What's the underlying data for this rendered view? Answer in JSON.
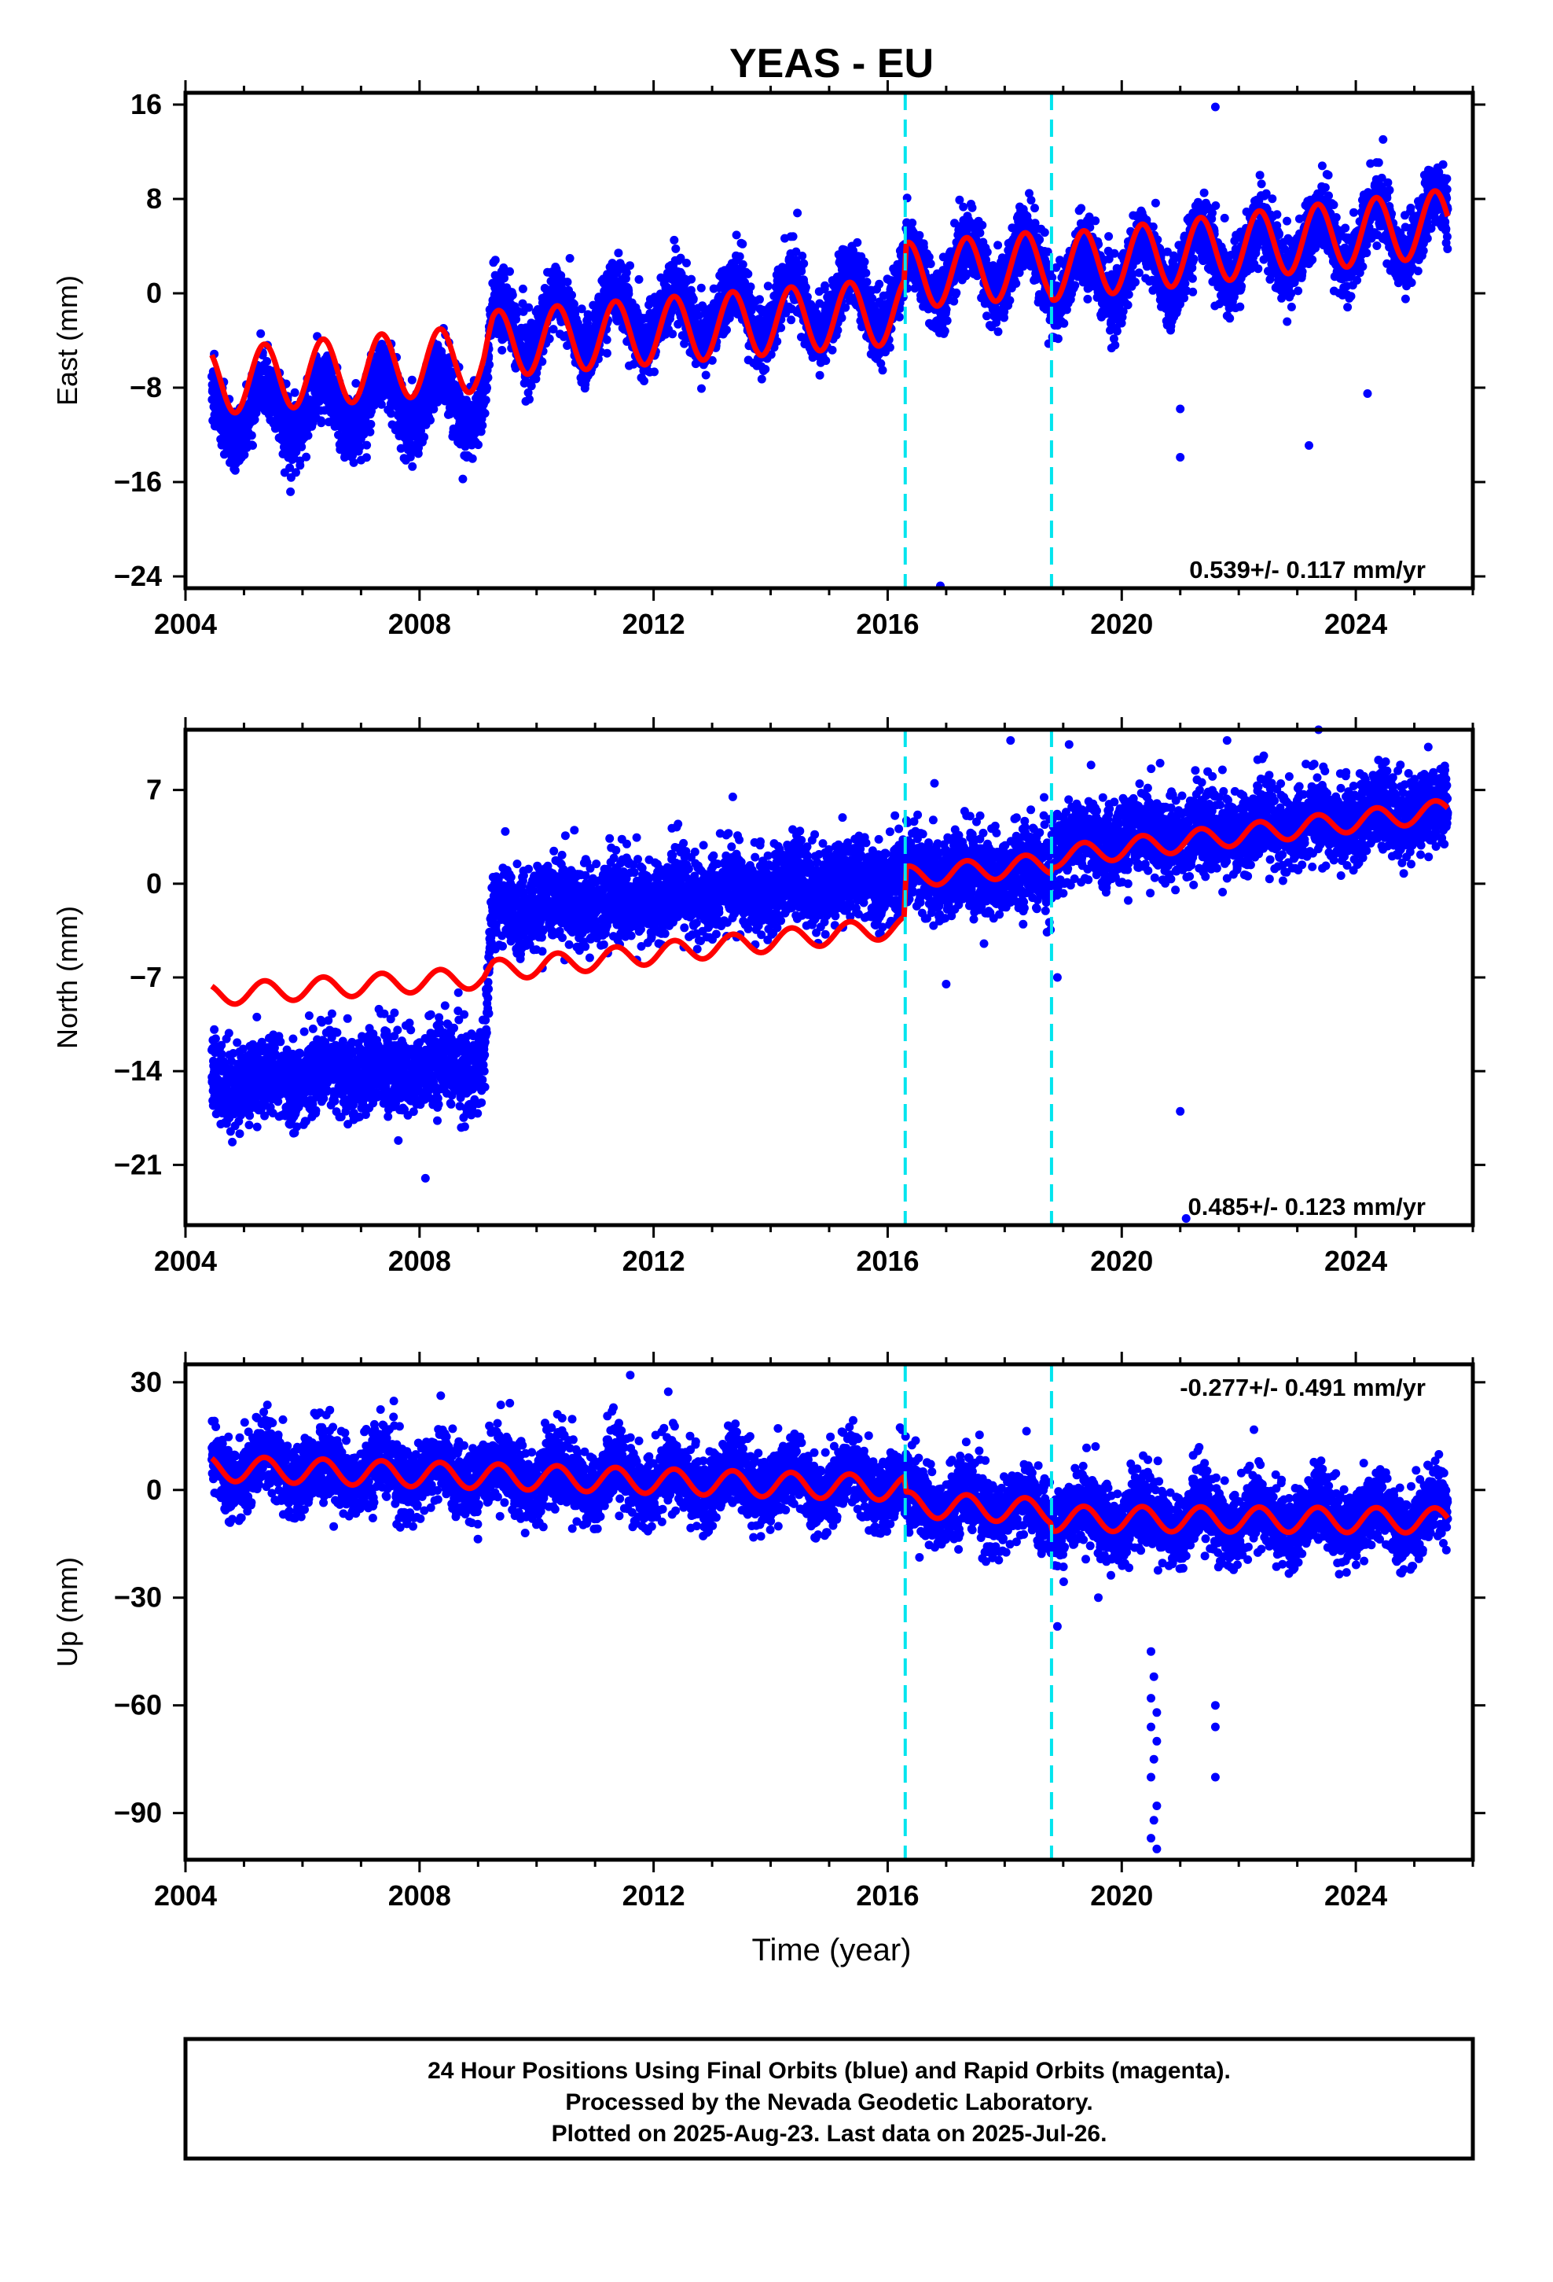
{
  "title": "YEAS - EU",
  "xlabel": "Time (year)",
  "footer": {
    "line1": "24 Hour Positions Using Final Orbits (blue) and Rapid Orbits (magenta).",
    "line2": "Processed by the Nevada Geodetic Laboratory.",
    "line3": "Plotted on 2025-Aug-23. Last data on 2025-Jul-26."
  },
  "colors": {
    "final_orbits": "#0000ff",
    "model": "#ff0000",
    "event_lines": "#00e5ee",
    "frame": "#000000"
  },
  "chart_data": [
    {
      "type": "scatter",
      "panel": "east",
      "ylabel": "East (mm)",
      "xlim": [
        2004.0,
        2026.0
      ],
      "ylim": [
        -25.0,
        17.0
      ],
      "xticks": [
        2004,
        2008,
        2012,
        2016,
        2020,
        2024
      ],
      "yticks": [
        16,
        8,
        0,
        -8,
        -16,
        -24
      ],
      "ytick_labels": [
        "16",
        "8",
        "0",
        "−8",
        "−16",
        "−24"
      ],
      "rate_label": "0.539+/- 0.117 mm/yr",
      "rate_position": "bottom-right",
      "events": [
        2016.3,
        2018.8
      ],
      "data_start": 2004.45,
      "data_end": 2025.57,
      "series": [
        {
          "role": "observations",
          "color": "#0000ff",
          "trend_knots": [
            [
              2004.45,
              -10.0
            ],
            [
              2009.1,
              -9.0
            ],
            [
              2009.25,
              -3.0
            ],
            [
              2016.28,
              -0.5
            ],
            [
              2016.32,
              1.5
            ],
            [
              2018.78,
              2.5
            ],
            [
              2018.82,
              1.0
            ],
            [
              2025.57,
              6.0
            ]
          ],
          "seasonal_amplitude_mm": 2.5,
          "scatter_sigma_mm": 1.4,
          "outliers": [
            [
              2016.9,
              -24.8
            ],
            [
              2021.6,
              15.8
            ],
            [
              2021.0,
              -13.9
            ],
            [
              2021.0,
              -9.8
            ],
            [
              2024.2,
              -8.5
            ],
            [
              2023.2,
              -12.9
            ]
          ]
        },
        {
          "role": "model",
          "color": "#ff0000",
          "trend_knots": [
            [
              2004.45,
              -7.5
            ],
            [
              2009.1,
              -5.5
            ],
            [
              2009.25,
              -4.3
            ],
            [
              2016.28,
              -1.5
            ],
            [
              2016.32,
              1.5
            ],
            [
              2018.78,
              2.5
            ],
            [
              2018.82,
              2.2
            ],
            [
              2025.57,
              6.0
            ]
          ],
          "seasonal_amplitude_mm": 2.8
        }
      ]
    },
    {
      "type": "scatter",
      "panel": "north",
      "ylabel": "North (mm)",
      "xlim": [
        2004.0,
        2026.0
      ],
      "ylim": [
        -25.5,
        11.5
      ],
      "xticks": [
        2004,
        2008,
        2012,
        2016,
        2020,
        2024
      ],
      "yticks": [
        7,
        0,
        -7,
        -14,
        -21
      ],
      "ytick_labels": [
        "7",
        "0",
        "−7",
        "−14",
        "−21"
      ],
      "rate_label": "0.485+/- 0.123 mm/yr",
      "rate_position": "bottom-right",
      "events": [
        2016.3,
        2018.8
      ],
      "data_start": 2004.45,
      "data_end": 2025.57,
      "series": [
        {
          "role": "observations",
          "color": "#0000ff",
          "trend_knots": [
            [
              2004.45,
              -15.0
            ],
            [
              2009.1,
              -13.5
            ],
            [
              2009.25,
              -2.0
            ],
            [
              2016.28,
              0.5
            ],
            [
              2016.32,
              0.5
            ],
            [
              2018.78,
              1.0
            ],
            [
              2018.82,
              2.8
            ],
            [
              2025.57,
              5.5
            ]
          ],
          "seasonal_amplitude_mm": 0.6,
          "scatter_sigma_mm": 1.5,
          "outliers": [
            [
              2008.1,
              -22.0
            ],
            [
              2021.0,
              -17.0
            ],
            [
              2021.1,
              -25.0
            ],
            [
              2018.1,
              10.7
            ],
            [
              2019.1,
              10.4
            ],
            [
              2021.8,
              10.7
            ],
            [
              2017.0,
              -7.5
            ],
            [
              2018.9,
              -7.0
            ],
            [
              2016.8,
              7.5
            ]
          ]
        },
        {
          "role": "model",
          "color": "#ff0000",
          "trend_knots": [
            [
              2004.45,
              -8.3
            ],
            [
              2009.1,
              -7.0
            ],
            [
              2009.25,
              -6.5
            ],
            [
              2016.28,
              -3.2
            ],
            [
              2016.32,
              0.5
            ],
            [
              2018.78,
              1.5
            ],
            [
              2018.82,
              2.0
            ],
            [
              2025.57,
              5.5
            ]
          ],
          "seasonal_amplitude_mm": 0.8
        }
      ]
    },
    {
      "type": "scatter",
      "panel": "up",
      "ylabel": "Up (mm)",
      "xlim": [
        2004.0,
        2026.0
      ],
      "ylim": [
        -103.0,
        35.0
      ],
      "xticks": [
        2004,
        2008,
        2012,
        2016,
        2020,
        2024
      ],
      "yticks": [
        30,
        0,
        -30,
        -60,
        -90
      ],
      "ytick_labels": [
        "30",
        "0",
        "−30",
        "−60",
        "−90"
      ],
      "rate_label": "-0.277+/- 0.491 mm/yr",
      "rate_position": "top-right",
      "events": [
        2016.3,
        2018.8
      ],
      "data_start": 2004.45,
      "data_end": 2025.57,
      "series": [
        {
          "role": "observations",
          "color": "#0000ff",
          "trend_knots": [
            [
              2004.45,
              6.0
            ],
            [
              2016.28,
              1.0
            ],
            [
              2016.32,
              -3.0
            ],
            [
              2018.78,
              -6.0
            ],
            [
              2018.82,
              -8.0
            ],
            [
              2025.57,
              -8.0
            ]
          ],
          "seasonal_amplitude_mm": 4.0,
          "scatter_sigma_mm": 5.0,
          "outliers": [
            [
              2011.6,
              32.0
            ],
            [
              2020.5,
              -45.0
            ],
            [
              2020.55,
              -52.0
            ],
            [
              2020.5,
              -58.0
            ],
            [
              2020.6,
              -62.0
            ],
            [
              2020.5,
              -66.0
            ],
            [
              2020.6,
              -70.0
            ],
            [
              2020.55,
              -75.0
            ],
            [
              2020.5,
              -80.0
            ],
            [
              2020.6,
              -88.0
            ],
            [
              2020.55,
              -92.0
            ],
            [
              2020.5,
              -97.0
            ],
            [
              2020.6,
              -100.0
            ],
            [
              2021.6,
              -60.0
            ],
            [
              2021.6,
              -66.0
            ],
            [
              2021.6,
              -80.0
            ],
            [
              2018.9,
              -38.0
            ],
            [
              2019.6,
              -30.0
            ]
          ]
        },
        {
          "role": "model",
          "color": "#ff0000",
          "trend_knots": [
            [
              2004.45,
              6.0
            ],
            [
              2016.28,
              0.5
            ],
            [
              2016.32,
              -4.0
            ],
            [
              2018.78,
              -6.0
            ],
            [
              2018.82,
              -8.0
            ],
            [
              2025.57,
              -8.5
            ]
          ],
          "seasonal_amplitude_mm": 3.5
        }
      ]
    }
  ]
}
